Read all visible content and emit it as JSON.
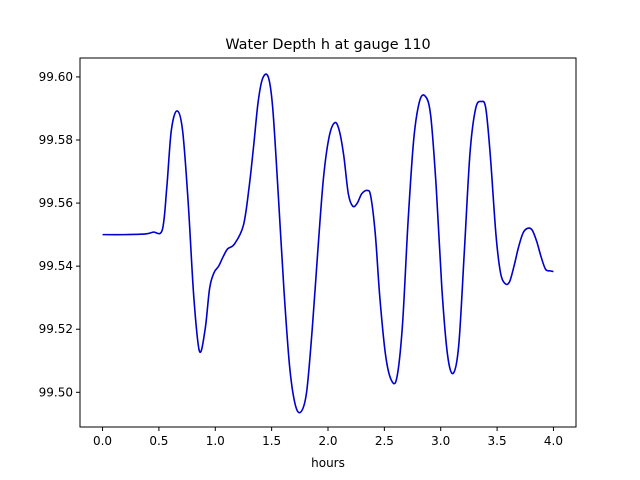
{
  "chart_data": {
    "type": "line",
    "title": "Water Depth h at gauge 110",
    "xlabel": "hours",
    "ylabel": "",
    "xlim": [
      -0.2,
      4.2
    ],
    "ylim": [
      99.489,
      99.606
    ],
    "xticks": [
      0.0,
      0.5,
      1.0,
      1.5,
      2.0,
      2.5,
      3.0,
      3.5,
      4.0
    ],
    "xtick_labels": [
      "0.0",
      "0.5",
      "1.0",
      "1.5",
      "2.0",
      "2.5",
      "3.0",
      "3.5",
      "4.0"
    ],
    "yticks": [
      99.5,
      99.52,
      99.54,
      99.56,
      99.58,
      99.6
    ],
    "ytick_labels": [
      "99.50",
      "99.52",
      "99.54",
      "99.56",
      "99.58",
      "99.60"
    ],
    "grid": false,
    "legend": "none",
    "series": [
      {
        "color": "#0000cc",
        "x": [
          0.0,
          0.2,
          0.38,
          0.45,
          0.53,
          0.57,
          0.61,
          0.66,
          0.71,
          0.76,
          0.81,
          0.86,
          0.91,
          0.95,
          0.99,
          1.03,
          1.07,
          1.11,
          1.17,
          1.25,
          1.3,
          1.34,
          1.38,
          1.42,
          1.47,
          1.51,
          1.56,
          1.61,
          1.66,
          1.71,
          1.76,
          1.81,
          1.86,
          1.91,
          1.96,
          2.01,
          2.06,
          2.1,
          2.14,
          2.18,
          2.22,
          2.26,
          2.3,
          2.35,
          2.38,
          2.42,
          2.46,
          2.51,
          2.56,
          2.61,
          2.66,
          2.71,
          2.76,
          2.81,
          2.86,
          2.91,
          2.96,
          3.01,
          3.06,
          3.11,
          3.16,
          3.21,
          3.26,
          3.31,
          3.36,
          3.4,
          3.44,
          3.49,
          3.53,
          3.57,
          3.61,
          3.65,
          3.69,
          3.73,
          3.77,
          3.81,
          3.85,
          3.89,
          3.93,
          3.97,
          4.0
        ],
        "y": [
          99.55,
          99.55,
          99.5502,
          99.5508,
          99.5515,
          99.565,
          99.583,
          99.5892,
          99.583,
          99.56,
          99.53,
          99.513,
          99.52,
          99.533,
          99.538,
          99.54,
          99.543,
          99.5455,
          99.547,
          99.553,
          99.565,
          99.578,
          99.592,
          99.5995,
          99.6,
          99.59,
          99.562,
          99.532,
          99.508,
          99.496,
          99.4938,
          99.5,
          99.52,
          99.545,
          99.568,
          99.581,
          99.5855,
          99.583,
          99.575,
          99.563,
          99.559,
          99.56,
          99.563,
          99.564,
          99.562,
          99.55,
          99.53,
          99.512,
          99.504,
          99.5045,
          99.521,
          99.554,
          99.58,
          99.592,
          99.594,
          99.588,
          99.565,
          99.533,
          99.512,
          99.506,
          99.515,
          99.545,
          99.576,
          99.59,
          99.5922,
          99.59,
          99.575,
          99.55,
          99.538,
          99.5345,
          99.535,
          99.54,
          99.546,
          99.5505,
          99.552,
          99.5515,
          99.548,
          99.543,
          99.539,
          99.5385,
          99.5383
        ]
      }
    ]
  }
}
